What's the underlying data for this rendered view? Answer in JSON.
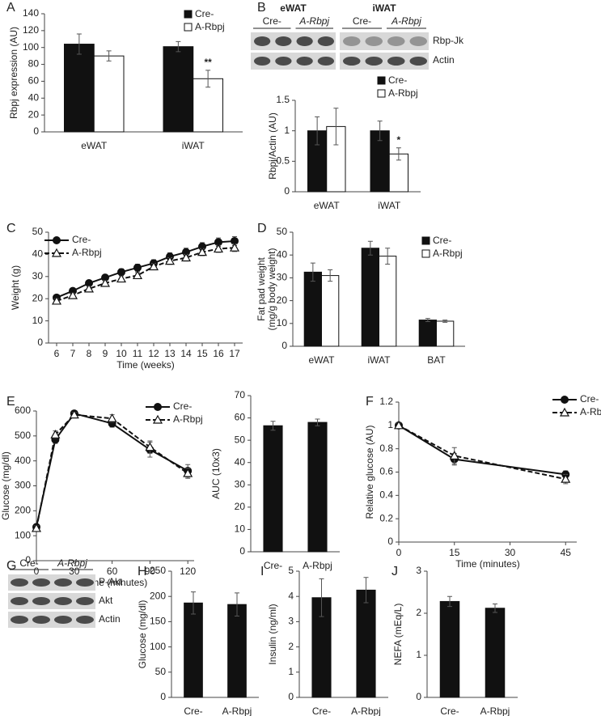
{
  "chart_data": [
    {
      "panel": "A",
      "type": "bar",
      "ylabel": "Rbpj expression (AU)",
      "categories": [
        "eWAT",
        "iWAT"
      ],
      "series": [
        {
          "name": "Cre-",
          "color": "#111111",
          "values": [
            104,
            101
          ],
          "errors": [
            12,
            6
          ]
        },
        {
          "name": "A-Rbpj",
          "color": "#ffffff",
          "values": [
            90,
            63
          ],
          "errors": [
            6,
            10
          ],
          "significance": [
            null,
            "**"
          ]
        }
      ],
      "ylim": [
        0,
        140
      ],
      "yticks": [
        0,
        20,
        40,
        60,
        80,
        100,
        120,
        140
      ],
      "legend": true
    },
    {
      "type": "bar",
      "ylabel": "Rbpj/Actin (AU)",
      "categories": [
        "eWAT",
        "iWAT"
      ],
      "series": [
        {
          "name": "Cre-",
          "color": "#111111",
          "values": [
            1,
            1
          ],
          "errors": [
            0.23,
            0.16
          ]
        },
        {
          "name": "A-Rbpj",
          "color": "#ffffff",
          "values": [
            1.07,
            0.62
          ],
          "errors": [
            0.3,
            0.1
          ],
          "significance": [
            null,
            "*"
          ]
        }
      ],
      "ylim": [
        0,
        1.5
      ],
      "yticks": [
        0,
        0.5,
        1,
        1.5
      ],
      "legend": true
    },
    {
      "panel": "C",
      "type": "line",
      "xlabel": "Time (weeks)",
      "ylabel": "Weight (g)",
      "x": [
        6,
        7,
        8,
        9,
        10,
        11,
        12,
        13,
        14,
        15,
        16,
        17
      ],
      "xlim": [
        5.5,
        17.5
      ],
      "xticks": [
        6,
        7,
        8,
        9,
        10,
        11,
        12,
        13,
        14,
        15,
        16,
        17
      ],
      "series": [
        {
          "name": "Cre-",
          "color": "#111111",
          "marker": "circle",
          "dashed": false,
          "values": [
            20.5,
            23.5,
            27,
            29.5,
            32,
            34,
            36,
            39,
            41,
            43.5,
            45.5,
            46
          ],
          "errors": [
            1.2,
            1.2,
            1.3,
            1.4,
            1.5,
            1.6,
            1.6,
            1.7,
            1.8,
            1.8,
            1.9,
            2
          ]
        },
        {
          "name": "A-Rbpj",
          "color": "#111111",
          "marker": "triangle",
          "dashed": true,
          "values": [
            19,
            21.5,
            24.5,
            27,
            29,
            30.5,
            34.5,
            37,
            38.5,
            41,
            42.5,
            43
          ],
          "errors": [
            1,
            1,
            1.1,
            1.2,
            1.3,
            1.3,
            1.4,
            1.5,
            1.5,
            1.6,
            1.6,
            1.7
          ]
        }
      ],
      "ylim": [
        0,
        50
      ],
      "yticks": [
        0,
        10,
        20,
        30,
        40,
        50
      ],
      "legend": true
    },
    {
      "panel": "D",
      "type": "bar",
      "ylabel": [
        "Fat pad weight",
        "(mg/g body weight)"
      ],
      "categories": [
        "eWAT",
        "iWAT",
        "BAT"
      ],
      "series": [
        {
          "name": "Cre-",
          "color": "#111111",
          "values": [
            32.5,
            43,
            11.5
          ],
          "errors": [
            4,
            3,
            0.7
          ]
        },
        {
          "name": "A-Rbpj",
          "color": "#ffffff",
          "values": [
            31,
            39.5,
            11
          ],
          "errors": [
            2.5,
            3.5,
            0.5
          ]
        }
      ],
      "ylim": [
        0,
        50
      ],
      "yticks": [
        0,
        10,
        20,
        30,
        40,
        50
      ],
      "legend": true
    },
    {
      "panel": "E",
      "type": "line",
      "xlabel": "Time (minutes)",
      "ylabel": "Glucose (mg/dl)",
      "x": [
        0,
        15,
        30,
        60,
        90,
        120
      ],
      "xlim": [
        0,
        125
      ],
      "xticks": [
        0,
        30,
        60,
        90,
        120
      ],
      "series": [
        {
          "name": "Cre-",
          "color": "#111111",
          "marker": "circle",
          "dashed": false,
          "values": [
            135,
            485,
            590,
            550,
            445,
            360
          ],
          "errors": [
            10,
            15,
            10,
            15,
            30,
            25
          ]
        },
        {
          "name": "A-Rbpj",
          "color": "#111111",
          "marker": "triangle",
          "dashed": true,
          "values": [
            130,
            505,
            585,
            570,
            455,
            350
          ],
          "errors": [
            10,
            15,
            10,
            15,
            25,
            20
          ]
        }
      ],
      "ylim": [
        0,
        600
      ],
      "yticks": [
        0,
        100,
        200,
        300,
        400,
        500,
        600
      ],
      "legend": true
    },
    {
      "type": "bar",
      "ylabel": "AUC (10x3)",
      "categories": [
        "Cre-",
        "A-Rbpj"
      ],
      "color": "#111111",
      "values": [
        56.5,
        58
      ],
      "errors": [
        2,
        1.5
      ],
      "ylim": [
        0,
        70
      ],
      "yticks": [
        0,
        10,
        20,
        30,
        40,
        50,
        60,
        70
      ]
    },
    {
      "panel": "F",
      "type": "line",
      "xlabel": "Time (minutes)",
      "ylabel": "Relative glucose (AU)",
      "x": [
        0,
        15,
        45
      ],
      "xlim": [
        0,
        48
      ],
      "xticks": [
        0,
        15,
        30,
        45
      ],
      "series": [
        {
          "name": "Cre-",
          "color": "#111111",
          "marker": "circle",
          "dashed": false,
          "values": [
            1,
            0.71,
            0.58
          ],
          "errors": [
            0.02,
            0.05,
            0.03
          ]
        },
        {
          "name": "A-Rbpj",
          "color": "#111111",
          "marker": "triangle",
          "dashed": true,
          "values": [
            1,
            0.74,
            0.54
          ],
          "errors": [
            0.02,
            0.07,
            0.04
          ]
        }
      ],
      "ylim": [
        0,
        1.2
      ],
      "yticks": [
        0,
        0.2,
        0.4,
        0.6,
        0.8,
        1,
        1.2
      ],
      "legend": true
    },
    {
      "panel": "H",
      "type": "bar",
      "ylabel": "Glucose (mg/dl)",
      "categories": [
        "Cre-",
        "A-Rbpj"
      ],
      "color": "#111111",
      "values": [
        187,
        184
      ],
      "errors": [
        22,
        23
      ],
      "ylim": [
        0,
        250
      ],
      "yticks": [
        0,
        50,
        100,
        150,
        200,
        250
      ]
    },
    {
      "panel": "I",
      "type": "bar",
      "ylabel": "Insulin (ng/ml)",
      "categories": [
        "Cre-",
        "A-Rbpj"
      ],
      "color": "#111111",
      "values": [
        3.95,
        4.25
      ],
      "errors": [
        0.75,
        0.5
      ],
      "ylim": [
        0,
        5
      ],
      "yticks": [
        0,
        1,
        2,
        3,
        4,
        5
      ]
    },
    {
      "panel": "J",
      "type": "bar",
      "ylabel": "NEFA (mEq/L)",
      "categories": [
        "Cre-",
        "A-Rbpj"
      ],
      "color": "#111111",
      "values": [
        2.28,
        2.12
      ],
      "errors": [
        0.12,
        0.1
      ],
      "ylim": [
        0,
        3
      ],
      "yticks": [
        0,
        1,
        2,
        3
      ]
    }
  ],
  "blots": [
    {
      "panel": "B",
      "tissues": [
        "eWAT",
        "iWAT"
      ],
      "groups": [
        "Cre-",
        "A-Rbpj",
        "Cre-",
        "A-Rbpj"
      ],
      "bands": [
        "Rbp-Jk",
        "Actin"
      ]
    },
    {
      "panel": "G",
      "groups": [
        "Cre-",
        "A-Rbpj"
      ],
      "bands": [
        "P-Akt",
        "Akt",
        "Actin"
      ]
    }
  ]
}
